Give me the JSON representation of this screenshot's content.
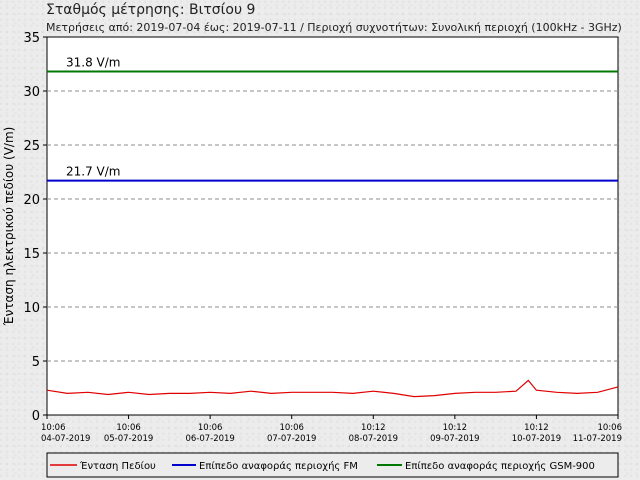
{
  "header": {
    "title": "Σταθμός μέτρησης: Βιτσίου 9",
    "subtitle": "Μετρήσεις από: 2019-07-04 έως: 2019-07-11 / Περιοχή συχνοτήτων: Συνολική περιοχή (100kHz - 3GHz)"
  },
  "chart_data": {
    "type": "line",
    "ylabel": "Ένταση ηλεκτρικού πεδίου (V/m)",
    "xlabel": "",
    "ylim": [
      0,
      35
    ],
    "yticks": [
      0,
      5,
      10,
      15,
      20,
      25,
      30,
      35
    ],
    "grid": "horizontal-dashed",
    "xticks": [
      {
        "time": "10:06",
        "date": "04-07-2019"
      },
      {
        "time": "10:06",
        "date": "05-07-2019"
      },
      {
        "time": "10:06",
        "date": "06-07-2019"
      },
      {
        "time": "10:06",
        "date": "07-07-2019"
      },
      {
        "time": "10:12",
        "date": "08-07-2019"
      },
      {
        "time": "10:12",
        "date": "09-07-2019"
      },
      {
        "time": "10:12",
        "date": "10-07-2019"
      },
      {
        "time": "10:06",
        "date": "11-07-2019"
      }
    ],
    "x": [
      0,
      0.25,
      0.5,
      0.75,
      1,
      1.25,
      1.5,
      1.75,
      2,
      2.25,
      2.5,
      2.75,
      3,
      3.25,
      3.5,
      3.75,
      4,
      4.25,
      4.5,
      4.75,
      5,
      5.25,
      5.5,
      5.75,
      5.9,
      6,
      6.25,
      6.5,
      6.75,
      7
    ],
    "series": [
      {
        "name": "Ένταση Πεδίου",
        "color": "#e00000",
        "values": [
          2.3,
          2.0,
          2.1,
          1.9,
          2.1,
          1.9,
          2.0,
          2.0,
          2.1,
          2.0,
          2.2,
          2.0,
          2.1,
          2.1,
          2.1,
          2.0,
          2.2,
          2.0,
          1.7,
          1.8,
          2.0,
          2.1,
          2.1,
          2.2,
          3.2,
          2.3,
          2.1,
          2.0,
          2.1,
          2.6
        ]
      }
    ],
    "reference_lines": [
      {
        "name": "Επίπεδο αναφοράς περιοχής FM",
        "value": 21.7,
        "label": "21.7 V/m",
        "color": "#0000cc"
      },
      {
        "name": "Επίπεδο αναφοράς περιοχής GSM-900",
        "value": 31.8,
        "label": "31.8 V/m",
        "color": "#007700"
      }
    ],
    "legend": {
      "placement": "bottom",
      "items": [
        {
          "label": "Ένταση Πεδίου",
          "color": "#e00000"
        },
        {
          "label": "Επίπεδο αναφοράς περιοχής FM",
          "color": "#0000cc"
        },
        {
          "label": "Επίπεδο αναφοράς περιοχής GSM-900",
          "color": "#007700"
        }
      ]
    }
  }
}
